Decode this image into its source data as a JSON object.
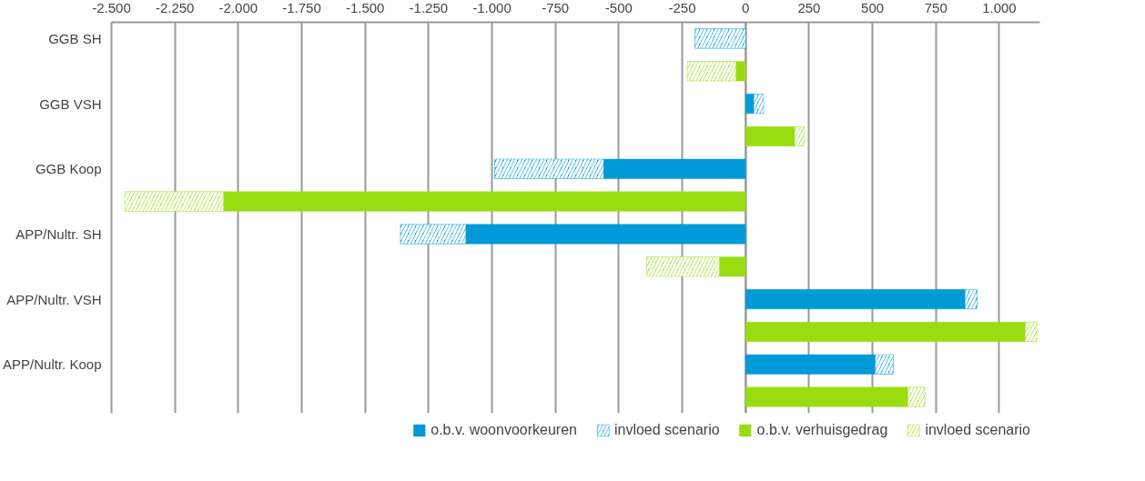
{
  "chart_data": {
    "type": "bar",
    "orientation": "horizontal",
    "stacked": true,
    "grid": "x",
    "legend": "bottom",
    "categories": [
      "GGB SH",
      null,
      "GGB VSH",
      null,
      "GGB Koop",
      null,
      "APP/Nultr. SH",
      null,
      "APP/Nultr. VSH",
      null,
      "APP/Nultr. Koop",
      null
    ],
    "xlim": [
      -2500,
      1160
    ],
    "xticks": [
      {
        "value": -2500,
        "label": "-2.500"
      },
      {
        "value": -2250,
        "label": "-2.250"
      },
      {
        "value": -2000,
        "label": "-2.000"
      },
      {
        "value": -1750,
        "label": "-1.750"
      },
      {
        "value": -1500,
        "label": "-1.500"
      },
      {
        "value": -1250,
        "label": "-1.250"
      },
      {
        "value": -1000,
        "label": "-1.000"
      },
      -750,
      -500,
      -250,
      0,
      250,
      500,
      750,
      {
        "value": 1000,
        "label": "1.000"
      }
    ],
    "series": [
      {
        "name": "o.b.v. woonvoorkeuren",
        "color": "#009ad9",
        "values": [
          0,
          null,
          32,
          null,
          -560,
          null,
          -1103,
          null,
          865,
          null,
          511,
          null
        ]
      },
      {
        "name": "invloed scenario",
        "color": "#009ad9",
        "values": [
          -200,
          null,
          39,
          null,
          -430,
          null,
          -258,
          null,
          48,
          null,
          71,
          null
        ]
      },
      {
        "name": "o.b.v. verhuisgedrag",
        "color": "#99dd11",
        "values": [
          null,
          -38,
          null,
          193,
          null,
          -2058,
          null,
          -103,
          null,
          1102,
          null,
          639
        ]
      },
      {
        "name": "invloed scenario",
        "color": "#99dd11",
        "values": [
          null,
          -192,
          null,
          39,
          null,
          -390,
          null,
          -288,
          null,
          46,
          null,
          68
        ]
      }
    ]
  }
}
